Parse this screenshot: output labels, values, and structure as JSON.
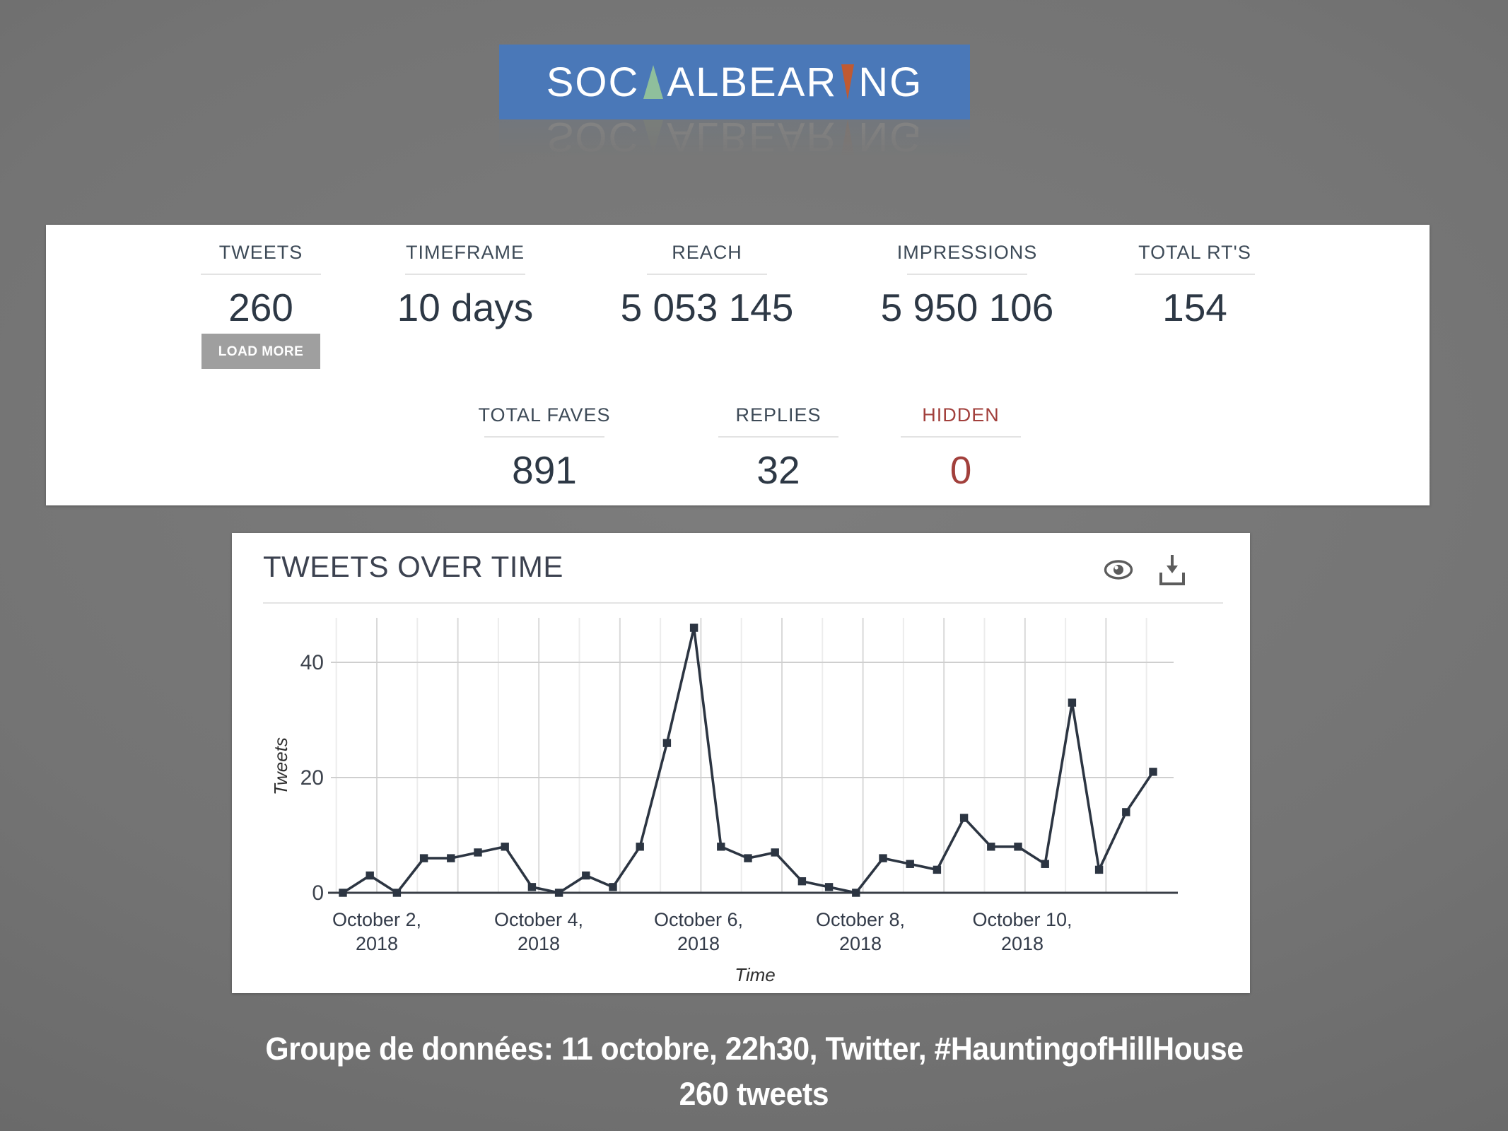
{
  "logo": {
    "part1": "SOC",
    "part2": "ALBEAR",
    "part3": "NG",
    "bg_color": "#4a78b8",
    "green_triangle_color": "#8fbf9c",
    "orange_triangle_color": "#c05a32"
  },
  "stats": {
    "row1": [
      {
        "label": "TWEETS",
        "value": "260"
      },
      {
        "label": "TIMEFRAME",
        "value": "10 days"
      },
      {
        "label": "REACH",
        "value": "5 053 145"
      },
      {
        "label": "IMPRESSIONS",
        "value": "5 950 106"
      },
      {
        "label": "TOTAL RT'S",
        "value": "154"
      }
    ],
    "load_more_label": "LOAD MORE",
    "row2": [
      {
        "label": "TOTAL FAVES",
        "value": "891"
      },
      {
        "label": "REPLIES",
        "value": "32"
      },
      {
        "label": "HIDDEN",
        "value": "0",
        "color": "#a2403c"
      }
    ]
  },
  "chart": {
    "title": "TWEETS OVER TIME"
  },
  "chart_data": {
    "type": "line",
    "title": "TWEETS OVER TIME",
    "xlabel": "Time",
    "ylabel": "Tweets",
    "bin_hours": 8,
    "values": [
      0,
      3,
      0,
      6,
      6,
      7,
      8,
      1,
      0,
      3,
      1,
      8,
      26,
      46,
      8,
      6,
      7,
      2,
      1,
      0,
      6,
      5,
      4,
      13,
      8,
      8,
      5,
      33,
      4,
      14,
      21
    ],
    "yticks": [
      0,
      20,
      40
    ],
    "ylim": [
      0,
      48
    ],
    "grid": true,
    "line_color": "#2c3542",
    "xtick_labels": [
      [
        "October 2,",
        "2018"
      ],
      [
        "October 4,",
        "2018"
      ],
      [
        "October 6,",
        "2018"
      ],
      [
        "October 8,",
        "2018"
      ],
      [
        "October 10,",
        "2018"
      ]
    ]
  },
  "caption": {
    "line1": "Groupe de données: 11 octobre, 22h30, Twitter, #HauntingofHillHouse",
    "line2": "260 tweets"
  }
}
